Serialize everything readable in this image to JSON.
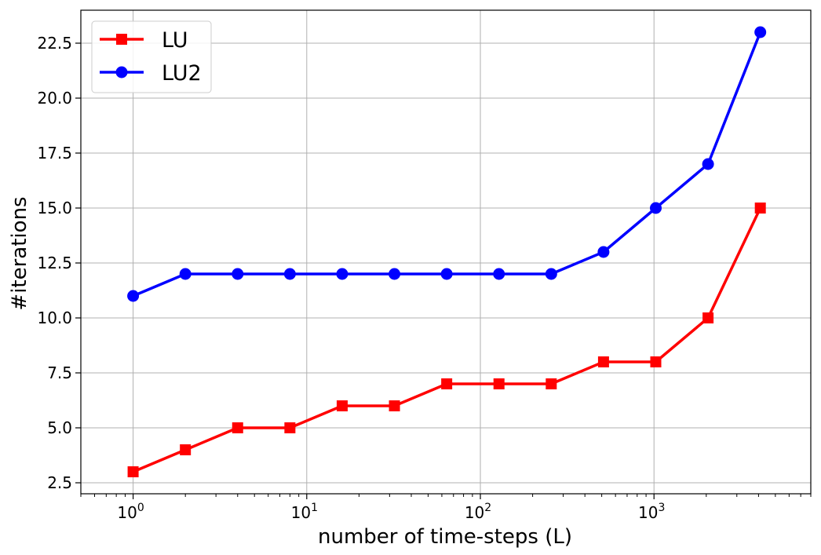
{
  "chart_data": {
    "type": "line",
    "xscale": "log",
    "x": [
      1,
      2,
      4,
      8,
      16,
      32,
      64,
      128,
      256,
      512,
      1024,
      2048,
      4096
    ],
    "series": [
      {
        "name": "LU",
        "color": "#ff0000",
        "marker": "square",
        "values": [
          3,
          4,
          5,
          5,
          6,
          6,
          7,
          7,
          7,
          8,
          8,
          10,
          15
        ]
      },
      {
        "name": "LU2",
        "color": "#0000ff",
        "marker": "circle",
        "values": [
          11,
          12,
          12,
          12,
          12,
          12,
          12,
          12,
          12,
          13,
          15,
          17,
          23
        ]
      }
    ],
    "xlabel": "number of time-steps (L)",
    "ylabel": "#iterations",
    "xlim": [
      0.5,
      8000
    ],
    "ylim": [
      2.0,
      24.0
    ],
    "x_ticks": [
      {
        "value": 1,
        "base": "10",
        "exp": "0"
      },
      {
        "value": 10,
        "base": "10",
        "exp": "1"
      },
      {
        "value": 100,
        "base": "10",
        "exp": "2"
      },
      {
        "value": 1000,
        "base": "10",
        "exp": "3"
      }
    ],
    "y_ticks": [
      {
        "value": 2.5,
        "label": "2.5"
      },
      {
        "value": 5.0,
        "label": "5.0"
      },
      {
        "value": 7.5,
        "label": "7.5"
      },
      {
        "value": 10.0,
        "label": "10.0"
      },
      {
        "value": 12.5,
        "label": "12.5"
      },
      {
        "value": 15.0,
        "label": "15.0"
      },
      {
        "value": 17.5,
        "label": "17.5"
      },
      {
        "value": 20.0,
        "label": "20.0"
      },
      {
        "value": 22.5,
        "label": "22.5"
      }
    ],
    "grid": true,
    "legend_position": "top-left"
  }
}
